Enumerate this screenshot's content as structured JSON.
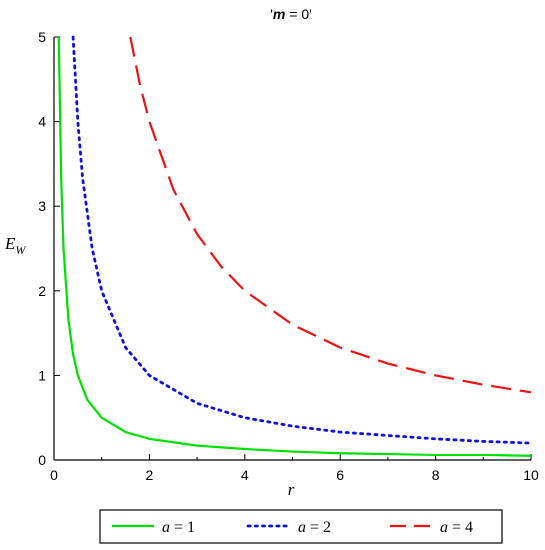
{
  "chart_data": {
    "type": "line",
    "title": "'m = 0'",
    "title_parts": {
      "quote_open": "'",
      "var": "m",
      "rest": " = 0'"
    },
    "xlabel": "r",
    "ylabel": {
      "base": "E",
      "sub": "W"
    },
    "xlim": [
      0,
      10
    ],
    "ylim": [
      0,
      5
    ],
    "xticks": [
      0,
      2,
      4,
      6,
      8,
      10
    ],
    "yticks": [
      0,
      1,
      2,
      3,
      4,
      5
    ],
    "minor_xticks": [
      1,
      3,
      5,
      7,
      9
    ],
    "grid": false,
    "legend_position": "bottom",
    "series": [
      {
        "name": "a = 1",
        "var": "a",
        "value_text": " = 1",
        "color": "#00e000",
        "style": "solid",
        "x": [
          0.1,
          0.15,
          0.2,
          0.3,
          0.4,
          0.5,
          0.7,
          1,
          1.5,
          2,
          3,
          4,
          5,
          6,
          7,
          8,
          9,
          10
        ],
        "y": [
          5.0,
          3.33,
          2.5,
          1.67,
          1.25,
          1.0,
          0.71,
          0.5,
          0.33,
          0.25,
          0.17,
          0.13,
          0.1,
          0.08,
          0.07,
          0.06,
          0.06,
          0.05
        ]
      },
      {
        "name": "a = 2",
        "var": "a",
        "value_text": " = 2",
        "color": "#1010dd",
        "style": "dotted",
        "x": [
          0.4,
          0.5,
          0.6,
          0.8,
          1,
          1.5,
          2,
          3,
          4,
          5,
          6,
          7,
          8,
          9,
          10
        ],
        "y": [
          5.0,
          4.0,
          3.33,
          2.5,
          2.0,
          1.33,
          1.0,
          0.67,
          0.5,
          0.4,
          0.33,
          0.29,
          0.25,
          0.22,
          0.2
        ]
      },
      {
        "name": "a = 4",
        "var": "a",
        "value_text": " = 4",
        "color": "#ee1111",
        "style": "dashed",
        "x": [
          1.6,
          1.8,
          2,
          2.5,
          3,
          3.5,
          4,
          5,
          6,
          7,
          8,
          9,
          10
        ],
        "y": [
          5.0,
          4.44,
          4.0,
          3.2,
          2.67,
          2.29,
          2.0,
          1.6,
          1.33,
          1.14,
          1.0,
          0.89,
          0.8
        ]
      }
    ]
  }
}
